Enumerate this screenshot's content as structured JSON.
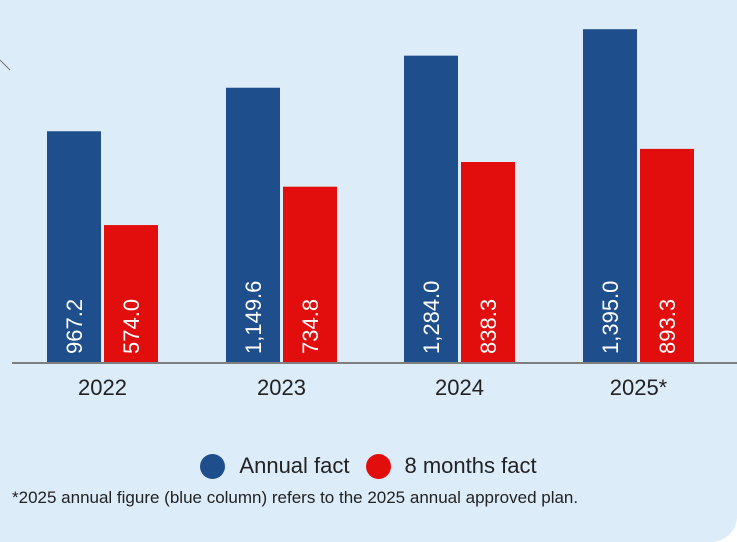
{
  "chart_data": {
    "type": "bar",
    "categories": [
      "2022",
      "2023",
      "2024",
      "2025*"
    ],
    "series": [
      {
        "name": "Annual fact",
        "color": "#1f4e8c",
        "values": [
          967.2,
          1149.6,
          1284.0,
          1395.0
        ],
        "labels": [
          "967.2",
          "1,149.6",
          "1,284.0",
          "1,395.0"
        ]
      },
      {
        "name": "8 months fact",
        "color": "#e20d0d",
        "values": [
          574.0,
          734.8,
          838.3,
          893.3
        ],
        "labels": [
          "574.0",
          "734.8",
          "838.3",
          "893.3"
        ]
      }
    ],
    "ylim": [
      0,
      1400
    ],
    "legend_position": "bottom",
    "grid": false
  },
  "footnote": "*2025 annual figure (blue column) refers to the 2025 annual approved plan."
}
